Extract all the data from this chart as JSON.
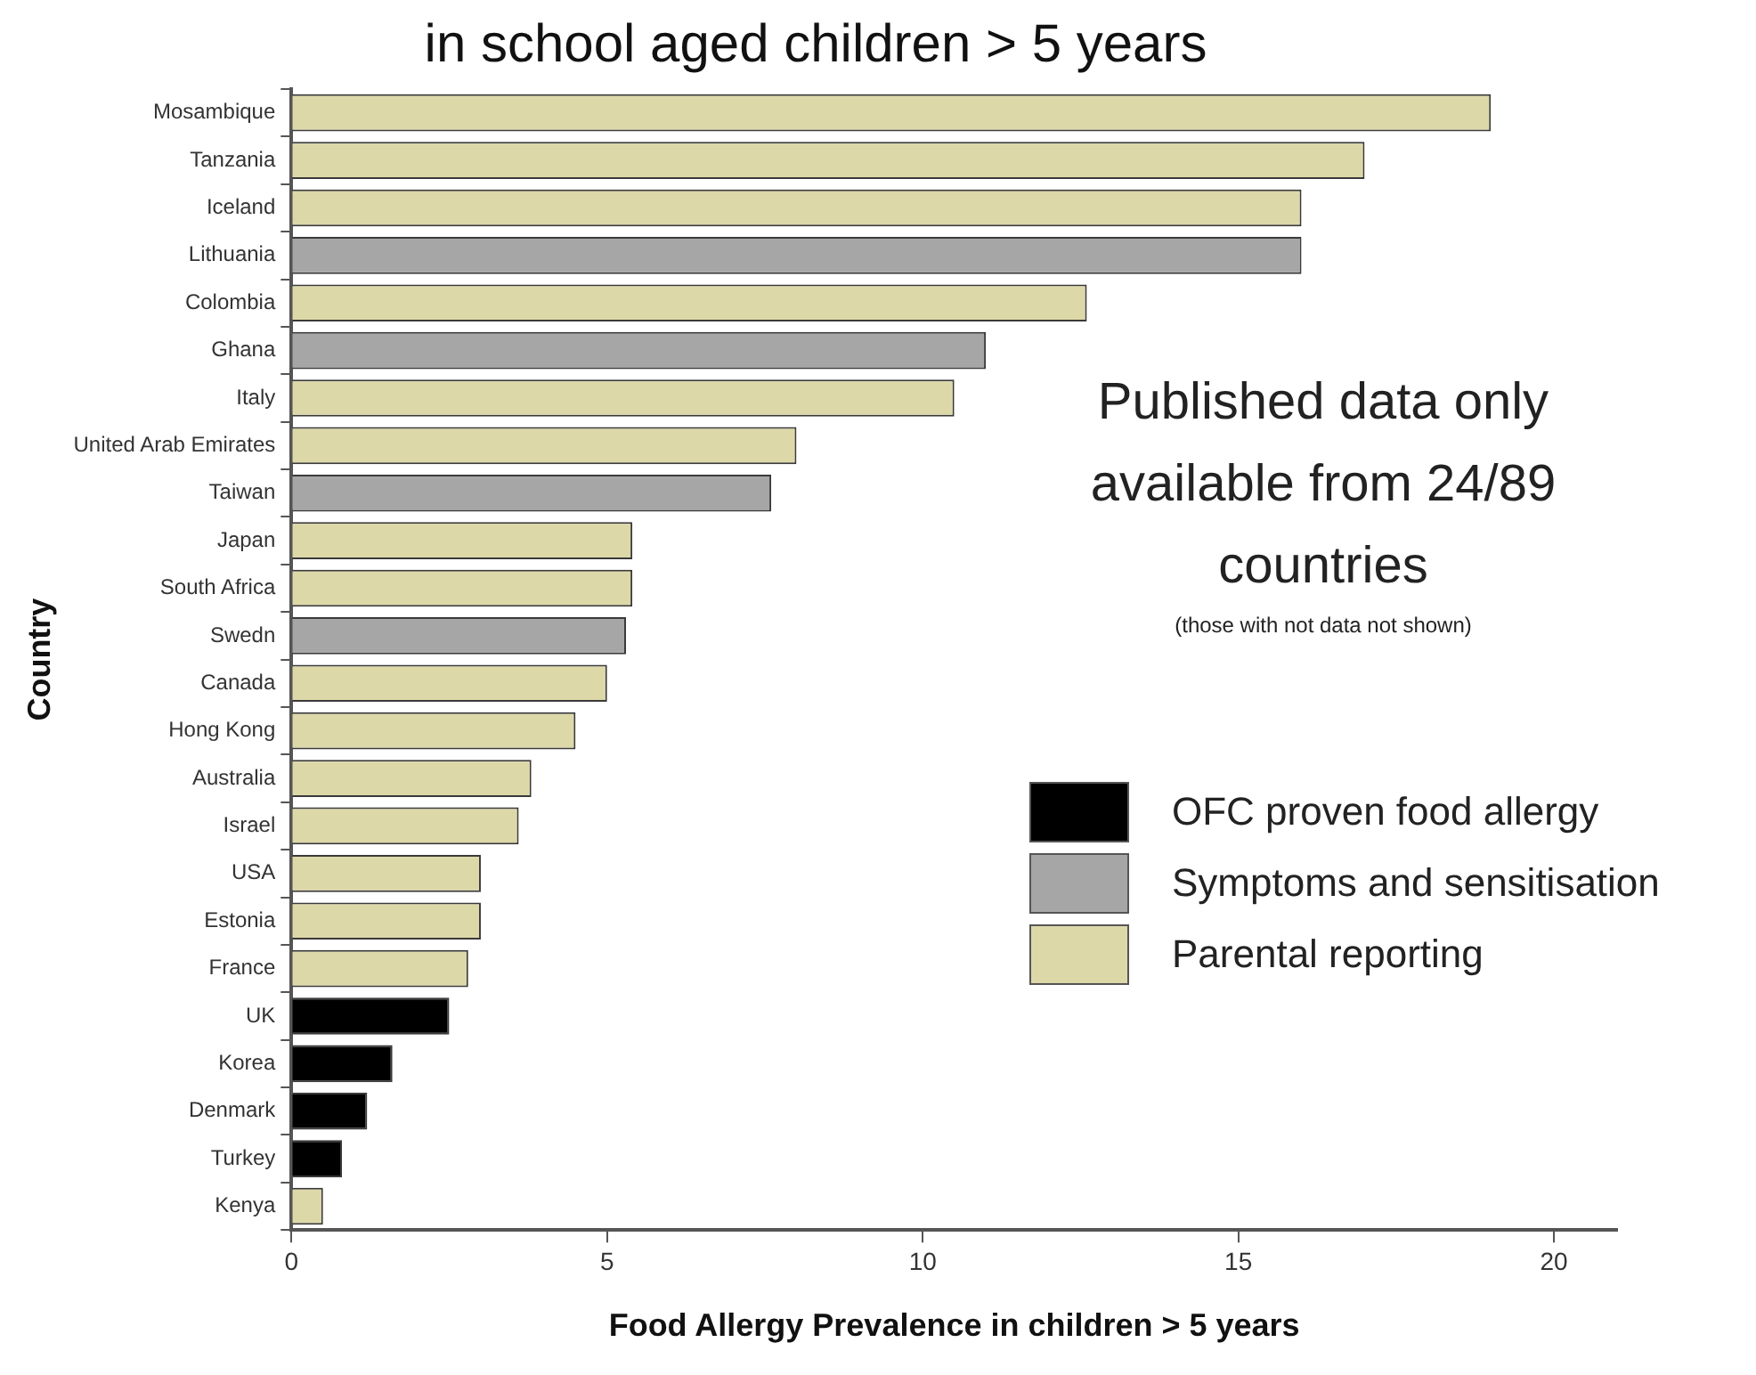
{
  "chart_data": {
    "type": "bar",
    "orientation": "horizontal",
    "stacked": true,
    "title": "in school aged children > 5 years",
    "xlabel": "Food Allergy Prevalence in children > 5 years",
    "ylabel": "Country",
    "categories": [
      "Mosambique",
      "Tanzania",
      "Iceland",
      "Lithuania",
      "Colombia",
      "Ghana",
      "Italy",
      "United Arab Emirates",
      "Taiwan",
      "Japan",
      "South Africa",
      "Swedn",
      "Canada",
      "Hong Kong",
      "Australia",
      "Israel",
      "USA",
      "Estonia",
      "France",
      "UK",
      "Korea",
      "Denmark",
      "Turkey",
      "Kenya"
    ],
    "series": [
      {
        "name": "OFC proven food allergy",
        "color": "#000000",
        "values": [
          null,
          null,
          null,
          null,
          null,
          null,
          null,
          null,
          null,
          null,
          null,
          null,
          null,
          null,
          null,
          null,
          null,
          null,
          null,
          2.5,
          1.6,
          1.2,
          0.8,
          null
        ]
      },
      {
        "name": "Symptoms and sensitisation",
        "color": "#a6a6a6",
        "values": [
          null,
          null,
          null,
          16.0,
          null,
          11.0,
          null,
          null,
          7.6,
          null,
          null,
          5.3,
          null,
          null,
          null,
          null,
          null,
          null,
          null,
          null,
          null,
          null,
          null,
          null
        ]
      },
      {
        "name": "Parental reporting",
        "color": "#ddd8a8",
        "values": [
          19.0,
          17.0,
          16.0,
          null,
          12.6,
          null,
          10.5,
          8.0,
          null,
          5.4,
          5.4,
          null,
          5.0,
          4.5,
          3.8,
          3.6,
          3.0,
          3.0,
          2.8,
          null,
          null,
          null,
          null,
          0.5
        ]
      }
    ],
    "xlim": [
      0,
      21
    ],
    "xticks": [
      0,
      5,
      10,
      15,
      20
    ],
    "grid": false,
    "legend": "right",
    "annotations": [
      "Published data only available from 24/89 countries",
      "(those with not data not shown)"
    ]
  }
}
